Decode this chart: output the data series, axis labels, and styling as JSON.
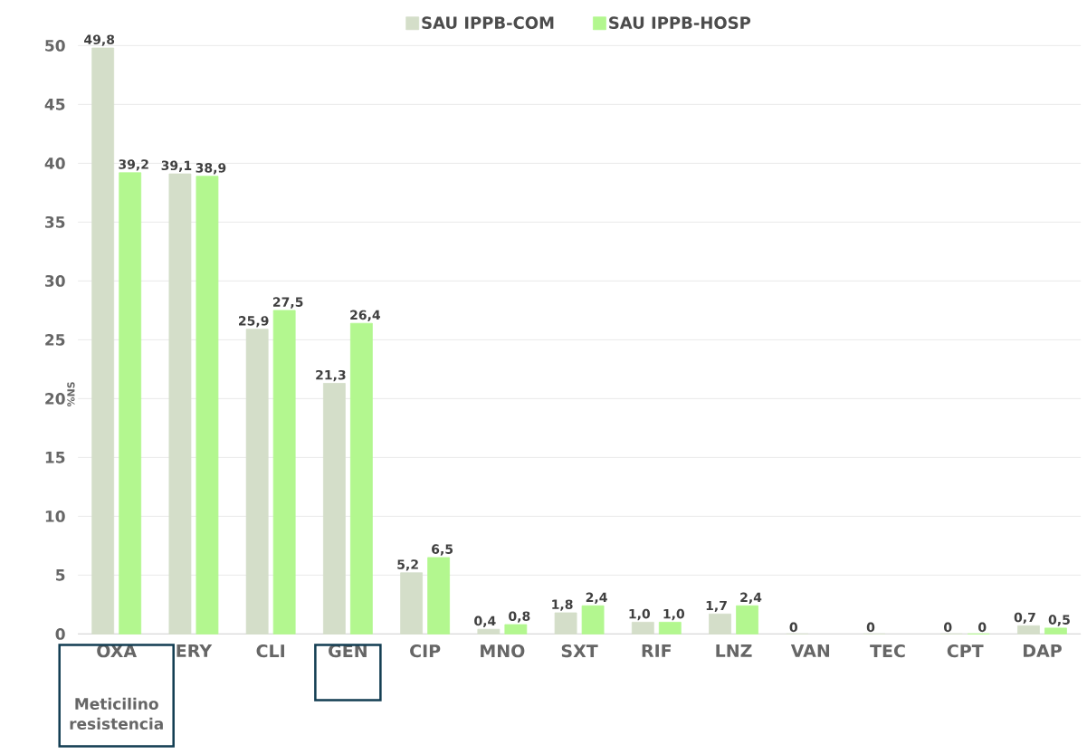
{
  "chart_data": {
    "type": "bar",
    "categories": [
      "OXA",
      "ERY",
      "CLI",
      "GEN",
      "CIP",
      "MNO",
      "SXT",
      "RIF",
      "LNZ",
      "VAN",
      "TEC",
      "CPT",
      "DAP"
    ],
    "series": [
      {
        "name": "SAU IPPB-COM",
        "color": "#d4dec9",
        "values": [
          49.8,
          39.1,
          25.9,
          21.3,
          5.2,
          0.4,
          1.8,
          1.0,
          1.7,
          0,
          0,
          0,
          0.7
        ],
        "value_labels": [
          "49,8",
          "39,1",
          "25,9",
          "21,3",
          "5,2",
          "0,4",
          "1,8",
          "1,0",
          "1,7",
          "0",
          "0",
          "0",
          "0,7"
        ]
      },
      {
        "name": "SAU IPPB-HOSP",
        "color": "#b3f78f",
        "values": [
          39.2,
          38.9,
          27.5,
          26.4,
          6.5,
          0.8,
          2.4,
          1.0,
          2.4,
          null,
          null,
          0,
          0.5
        ],
        "value_labels": [
          "39,2",
          "38,9",
          "27,5",
          "26,4",
          "6,5",
          "0,8",
          "2,4",
          "1,0",
          "2,4",
          null,
          null,
          "0",
          "0,5"
        ]
      }
    ],
    "ylabel": "%NS",
    "ylim": [
      0,
      50
    ],
    "yticks": [
      0,
      5,
      10,
      15,
      20,
      25,
      30,
      35,
      40,
      45,
      50
    ],
    "grid": "y",
    "legend": "top",
    "annotations": [
      "Meticilino resistencia"
    ]
  }
}
